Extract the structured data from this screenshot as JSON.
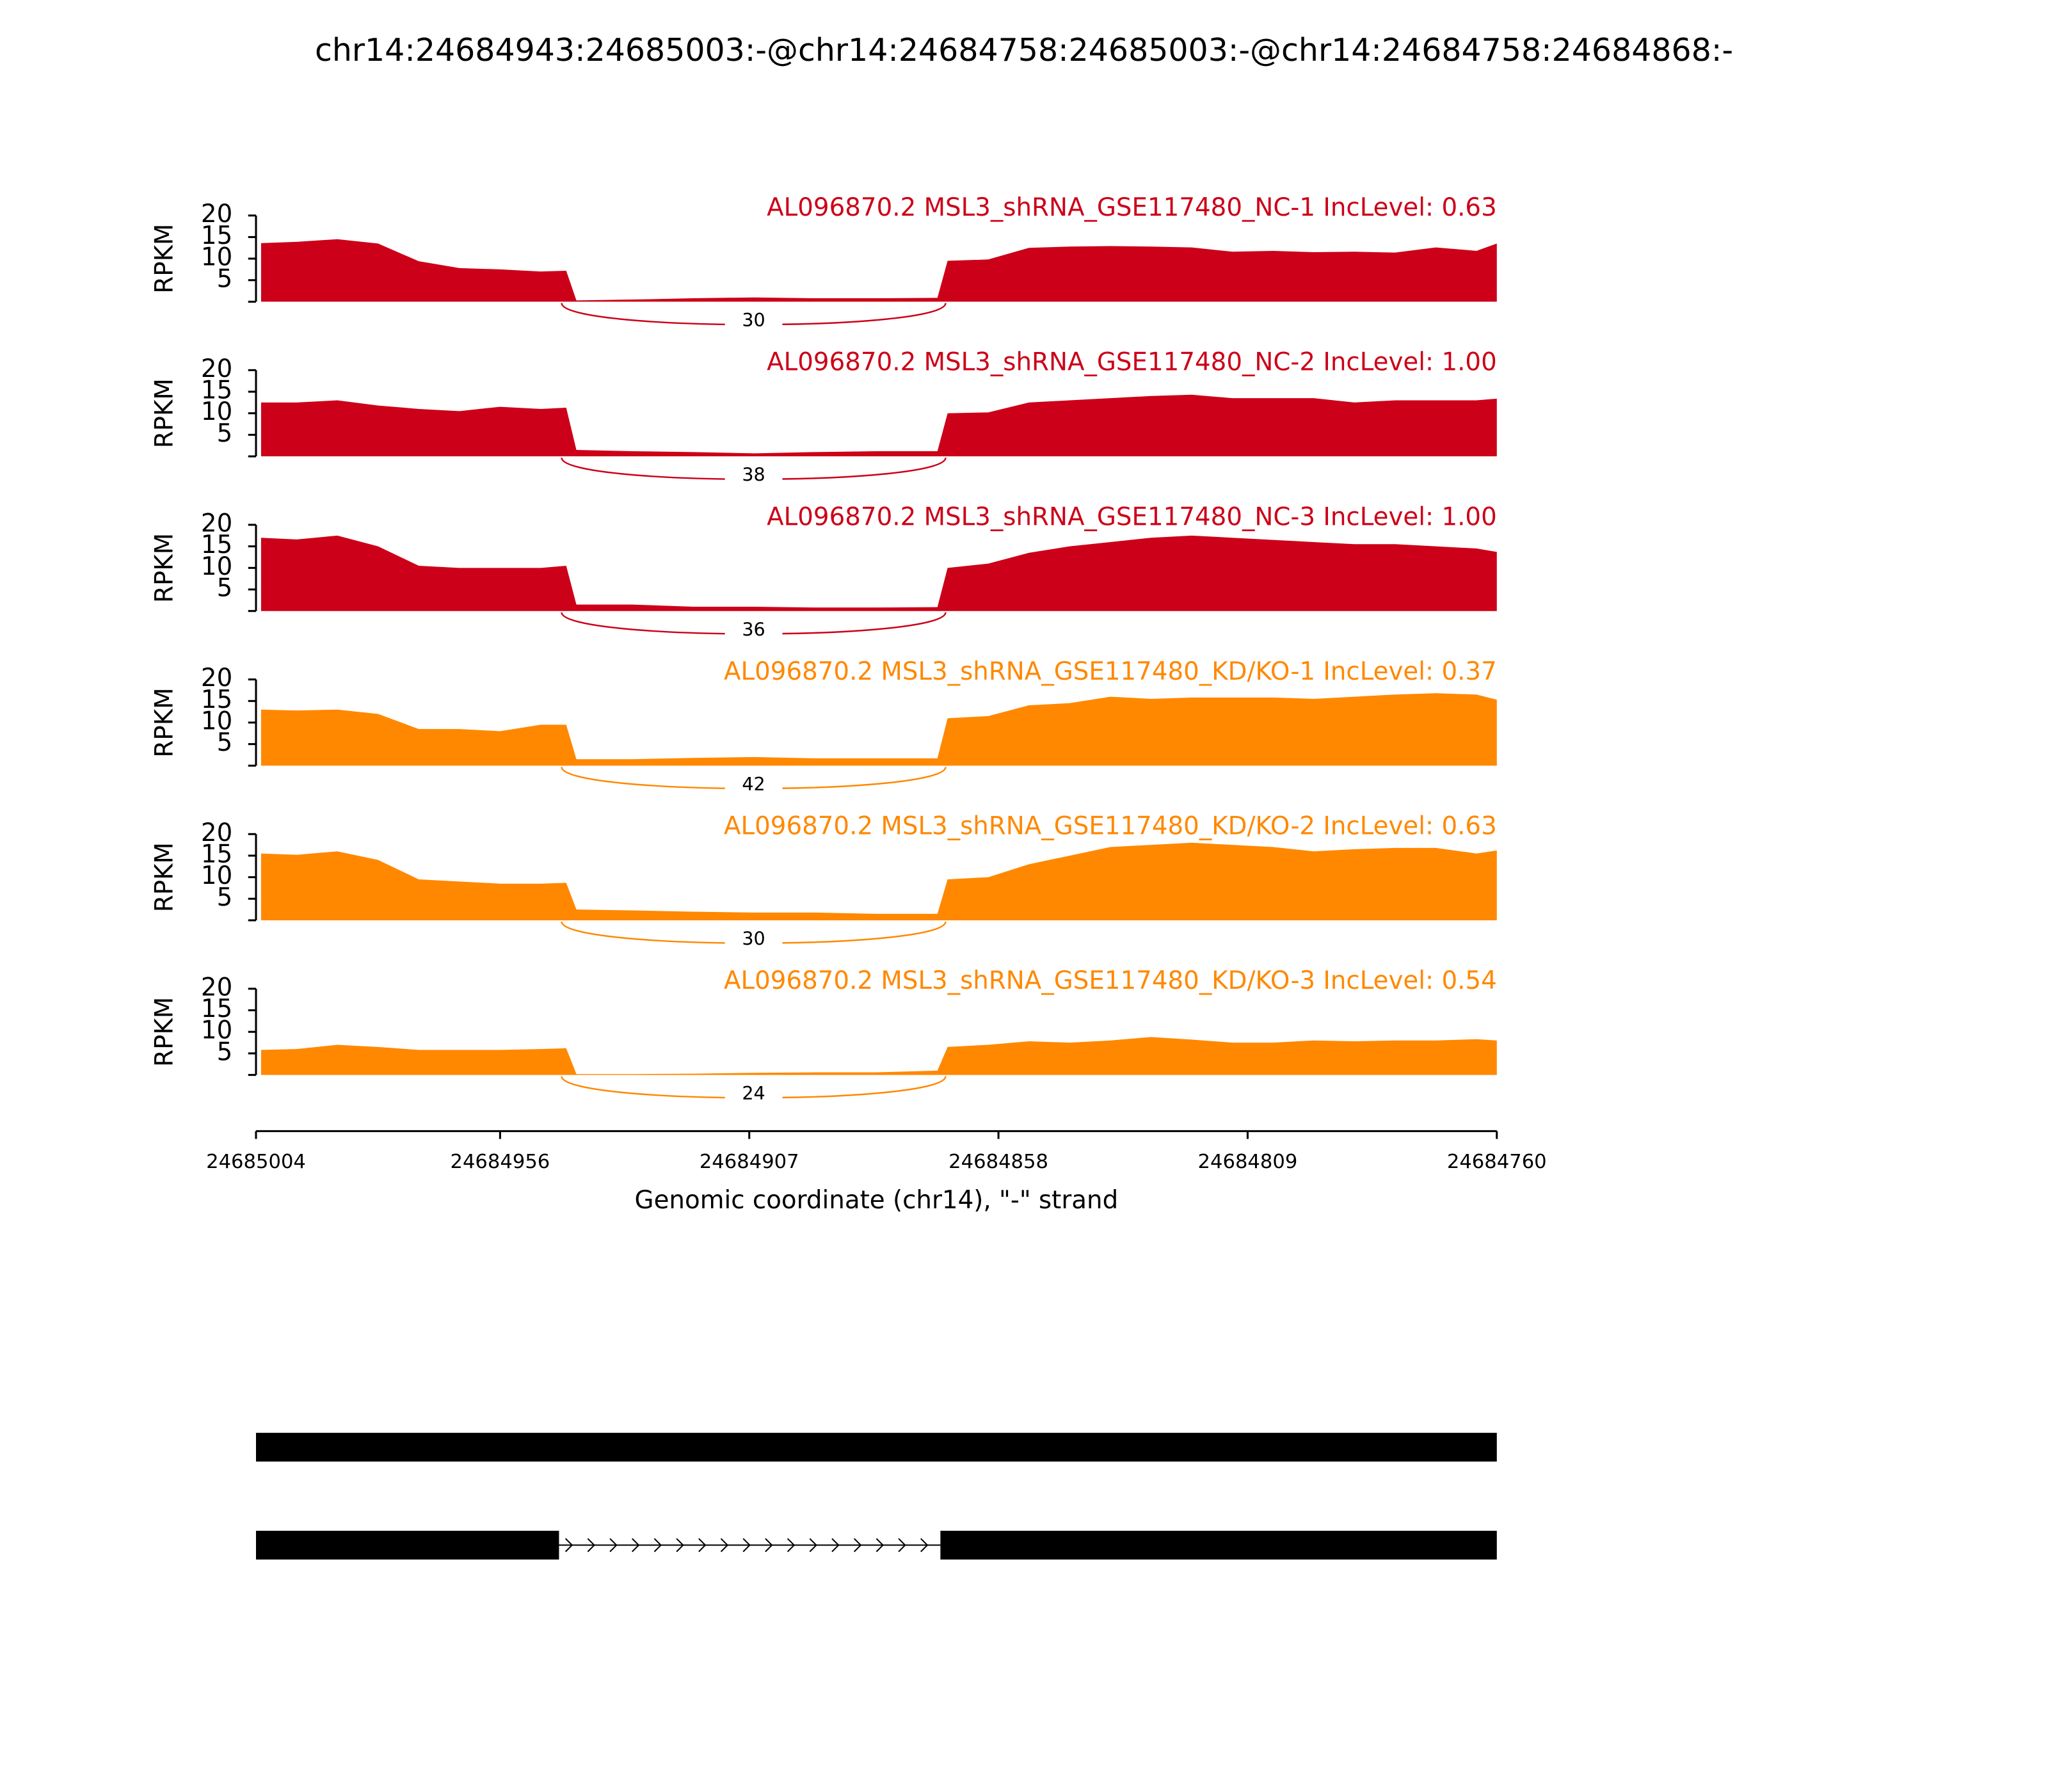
{
  "title": "chr14:24684943:24685003:-@chr14:24684758:24685003:-@chr14:24684758:24684868:-",
  "chart_data": [
    {
      "type": "area",
      "label": "AL096870.2 MSL3_shRNA_GSE117480_NC-1 IncLevel: 0.63",
      "color": "#cc0018",
      "ylabel": "RPKM",
      "xlim": [
        24685004,
        24684760
      ],
      "ylim": [
        0,
        20
      ],
      "yticks": [
        5,
        10,
        15,
        20
      ],
      "junction_count": 30,
      "x": [
        24685003,
        24684996,
        24684988,
        24684980,
        24684972,
        24684964,
        24684956,
        24684948,
        24684943,
        24684941,
        24684930,
        24684918,
        24684906,
        24684894,
        24684882,
        24684870,
        24684868,
        24684860,
        24684852,
        24684844,
        24684836,
        24684828,
        24684820,
        24684812,
        24684804,
        24684796,
        24684788,
        24684780,
        24684772,
        24684764,
        24684760
      ],
      "values": [
        13.6,
        13.9,
        14.5,
        13.5,
        9.4,
        7.8,
        7.5,
        7,
        7.2,
        0.3,
        0.5,
        0.8,
        1,
        0.8,
        0.8,
        0.9,
        9.5,
        9.8,
        12.5,
        12.8,
        12.9,
        12.8,
        12.6,
        11.6,
        11.8,
        11.5,
        11.6,
        11.4,
        12.6,
        11.8,
        13.5
      ]
    },
    {
      "type": "area",
      "label": "AL096870.2 MSL3_shRNA_GSE117480_NC-2 IncLevel: 1.00",
      "color": "#cc0018",
      "ylabel": "RPKM",
      "xlim": [
        24685004,
        24684760
      ],
      "ylim": [
        0,
        20
      ],
      "yticks": [
        5,
        10,
        15,
        20
      ],
      "junction_count": 38,
      "x": [
        24685003,
        24684996,
        24684988,
        24684980,
        24684972,
        24684964,
        24684956,
        24684948,
        24684943,
        24684941,
        24684930,
        24684918,
        24684906,
        24684894,
        24684882,
        24684870,
        24684868,
        24684860,
        24684852,
        24684844,
        24684836,
        24684828,
        24684820,
        24684812,
        24684804,
        24684796,
        24684788,
        24684780,
        24684772,
        24684764,
        24684760
      ],
      "values": [
        12.5,
        12.5,
        13,
        11.8,
        11,
        10.5,
        11.5,
        11,
        11.3,
        1.5,
        1.2,
        1,
        0.7,
        1,
        1.2,
        1.2,
        10,
        10.2,
        12.5,
        13,
        13.5,
        14,
        14.3,
        13.5,
        13.5,
        13.5,
        12.5,
        13,
        13,
        13,
        13.4
      ]
    },
    {
      "type": "area",
      "label": "AL096870.2 MSL3_shRNA_GSE117480_NC-3 IncLevel: 1.00",
      "color": "#cc0018",
      "ylabel": "RPKM",
      "xlim": [
        24685004,
        24684760
      ],
      "ylim": [
        0,
        20
      ],
      "yticks": [
        5,
        10,
        15,
        20
      ],
      "junction_count": 36,
      "x": [
        24685003,
        24684996,
        24684988,
        24684980,
        24684972,
        24684964,
        24684956,
        24684948,
        24684943,
        24684941,
        24684930,
        24684918,
        24684906,
        24684894,
        24684882,
        24684870,
        24684868,
        24684860,
        24684852,
        24684844,
        24684836,
        24684828,
        24684820,
        24684812,
        24684804,
        24684796,
        24684788,
        24684780,
        24684772,
        24684764,
        24684760
      ],
      "values": [
        17,
        16.6,
        17.5,
        15,
        10.5,
        10,
        10,
        10,
        10.5,
        1.5,
        1.5,
        1,
        1,
        0.8,
        0.8,
        0.9,
        10,
        11,
        13.5,
        15,
        16,
        17,
        17.5,
        17,
        16.5,
        16,
        15.5,
        15.5,
        15,
        14.5,
        13.7
      ]
    },
    {
      "type": "area",
      "label": "AL096870.2 MSL3_shRNA_GSE117480_KD/KO-1 IncLevel: 0.37",
      "color": "#ff8800",
      "ylabel": "RPKM",
      "xlim": [
        24685004,
        24684760
      ],
      "ylim": [
        0,
        20
      ],
      "yticks": [
        5,
        10,
        15,
        20
      ],
      "junction_count": 42,
      "x": [
        24685003,
        24684996,
        24684988,
        24684980,
        24684972,
        24684964,
        24684956,
        24684948,
        24684943,
        24684941,
        24684930,
        24684918,
        24684906,
        24684894,
        24684882,
        24684870,
        24684868,
        24684860,
        24684852,
        24684844,
        24684836,
        24684828,
        24684820,
        24684812,
        24684804,
        24684796,
        24684788,
        24684780,
        24684772,
        24684764,
        24684760
      ],
      "values": [
        13,
        12.8,
        13,
        12,
        8.5,
        8.5,
        8,
        9.5,
        9.5,
        1.5,
        1.5,
        1.8,
        2,
        1.7,
        1.7,
        1.7,
        11,
        11.5,
        14,
        14.5,
        16,
        15.5,
        15.8,
        15.8,
        15.8,
        15.5,
        16,
        16.5,
        16.8,
        16.5,
        15.3
      ]
    },
    {
      "type": "area",
      "label": "AL096870.2 MSL3_shRNA_GSE117480_KD/KO-2 IncLevel: 0.63",
      "color": "#ff8800",
      "ylabel": "RPKM",
      "xlim": [
        24685004,
        24684760
      ],
      "ylim": [
        0,
        20
      ],
      "yticks": [
        5,
        10,
        15,
        20
      ],
      "junction_count": 30,
      "x": [
        24685003,
        24684996,
        24684988,
        24684980,
        24684972,
        24684964,
        24684956,
        24684948,
        24684943,
        24684941,
        24684930,
        24684918,
        24684906,
        24684894,
        24684882,
        24684870,
        24684868,
        24684860,
        24684852,
        24684844,
        24684836,
        24684828,
        24684820,
        24684812,
        24684804,
        24684796,
        24684788,
        24684780,
        24684772,
        24684764,
        24684760
      ],
      "values": [
        15.5,
        15.2,
        16,
        14,
        9.5,
        9,
        8.5,
        8.5,
        8.7,
        2.5,
        2.3,
        2,
        1.8,
        1.8,
        1.5,
        1.5,
        9.5,
        10,
        13,
        15,
        17,
        17.5,
        18,
        17.5,
        17,
        16,
        16.5,
        16.8,
        16.8,
        15.5,
        16.2
      ]
    },
    {
      "type": "area",
      "label": "AL096870.2 MSL3_shRNA_GSE117480_KD/KO-3 IncLevel: 0.54",
      "color": "#ff8800",
      "ylabel": "RPKM",
      "xlim": [
        24685004,
        24684760
      ],
      "ylim": [
        0,
        20
      ],
      "yticks": [
        5,
        10,
        15,
        20
      ],
      "junction_count": 24,
      "x": [
        24685003,
        24684996,
        24684988,
        24684980,
        24684972,
        24684964,
        24684956,
        24684948,
        24684943,
        24684941,
        24684930,
        24684918,
        24684906,
        24684894,
        24684882,
        24684870,
        24684868,
        24684860,
        24684852,
        24684844,
        24684836,
        24684828,
        24684820,
        24684812,
        24684804,
        24684796,
        24684788,
        24684780,
        24684772,
        24684764,
        24684760
      ],
      "values": [
        5.8,
        6,
        7,
        6.5,
        5.8,
        5.8,
        5.8,
        6,
        6.2,
        0.2,
        0.2,
        0.3,
        0.5,
        0.6,
        0.6,
        1,
        6.5,
        7,
        7.8,
        7.5,
        8,
        8.8,
        8.2,
        7.5,
        7.5,
        8,
        7.8,
        8,
        8,
        8.3,
        8
      ],
      "xticks": [
        24685004,
        24684956,
        24684907,
        24684858,
        24684809,
        24684760
      ],
      "xlabel": "Genomic coordinate (chr14), \"-\" strand"
    }
  ]
}
